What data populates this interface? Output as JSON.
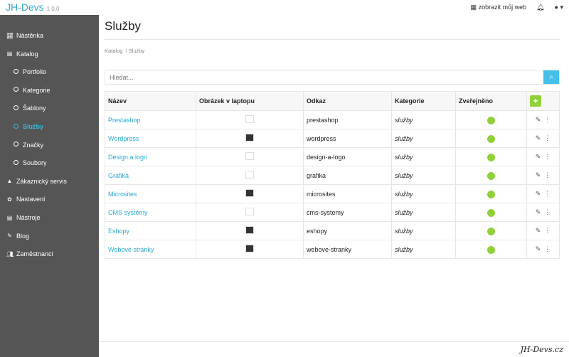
{
  "app": {
    "name": "JH-Devs",
    "version": "1.0.0"
  },
  "topbar": {
    "view_site": "zobrazit můj web",
    "store_icon": "store-icon",
    "bell_icon": "bell-icon",
    "user_icon": "user-circle-icon"
  },
  "sidebar": {
    "items": [
      {
        "label": "Nástěnka",
        "icon": "chart-line-icon",
        "sub": false
      },
      {
        "label": "Katalog",
        "icon": "book-icon",
        "sub": false
      },
      {
        "label": "Portfolio",
        "icon": "circle-icon",
        "sub": true
      },
      {
        "label": "Kategorie",
        "icon": "circle-icon",
        "sub": true
      },
      {
        "label": "Šablony",
        "icon": "circle-icon",
        "sub": true
      },
      {
        "label": "Služby",
        "icon": "circle-icon",
        "sub": true,
        "active": true
      },
      {
        "label": "Značky",
        "icon": "circle-icon",
        "sub": true
      },
      {
        "label": "Soubory",
        "icon": "circle-icon",
        "sub": true
      },
      {
        "label": "Zákaznický servis",
        "icon": "bell-icon",
        "sub": false
      },
      {
        "label": "Nastavení",
        "icon": "gear-icon",
        "sub": false
      },
      {
        "label": "Nástroje",
        "icon": "toolbox-icon",
        "sub": false
      },
      {
        "label": "Blog",
        "icon": "pen-icon",
        "sub": false
      },
      {
        "label": "Zaměstnanci",
        "icon": "users-icon",
        "sub": false
      }
    ]
  },
  "page": {
    "title": "Služby",
    "breadcrumb": [
      "Katalog",
      "Služby"
    ],
    "search_placeholder": "Hledat..."
  },
  "table": {
    "headers": [
      "Název",
      "Obrázek v laptopu",
      "Odkaz",
      "Kategorie",
      "Zveřejněno"
    ],
    "add_label": "+",
    "rows": [
      {
        "name": "Prestashop",
        "link": "prestashop",
        "category": "služby",
        "published": true
      },
      {
        "name": "Wordpress",
        "link": "wordpress",
        "category": "služby",
        "published": true
      },
      {
        "name": "Design a logo",
        "link": "design-a-logo",
        "category": "služby",
        "published": true
      },
      {
        "name": "Grafika",
        "link": "grafika",
        "category": "služby",
        "published": true
      },
      {
        "name": "Microsites",
        "link": "microsites",
        "category": "služby",
        "published": true
      },
      {
        "name": "CMS systémy",
        "link": "cms-systemy",
        "category": "služby",
        "published": true
      },
      {
        "name": "Eshopy",
        "link": "eshopy",
        "category": "služby",
        "published": true
      },
      {
        "name": "Webové stránky",
        "link": "webove-stranky",
        "category": "služby",
        "published": true
      }
    ]
  },
  "colors": {
    "accent": "#3ab7dc",
    "sidebar": "#555555",
    "published": "#8fd13a"
  },
  "footer": {
    "text": "JH-Devs.cz"
  }
}
